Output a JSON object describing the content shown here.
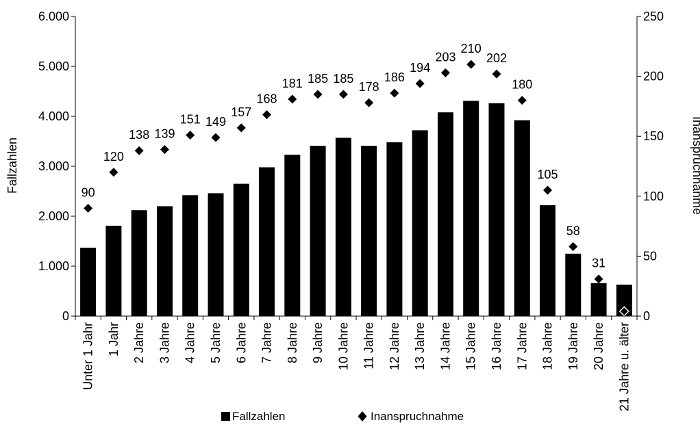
{
  "chart_data": {
    "type": "bar",
    "categories": [
      "Unter 1 Jahr",
      "1 Jahr",
      "2 Jahre",
      "3 Jahre",
      "4 Jahre",
      "5 Jahre",
      "6 Jahre",
      "7 Jahre",
      "8 Jahre",
      "9 Jahre",
      "10 Jahre",
      "11 Jahre",
      "12 Jahre",
      "13 Jahre",
      "14 Jahre",
      "15 Jahre",
      "16 Jahre",
      "17 Jahre",
      "18 Jahre",
      "19 Jahre",
      "20 Jahre",
      "21 Jahre u. älter"
    ],
    "series": [
      {
        "name": "Fallzahlen",
        "kind": "bar",
        "axis": "left",
        "color": "#000000",
        "values": [
          1370,
          1810,
          2120,
          2200,
          2420,
          2460,
          2650,
          2980,
          3230,
          3410,
          3570,
          3410,
          3480,
          3720,
          4080,
          4310,
          4260,
          3920,
          2220,
          1250,
          660,
          630
        ]
      },
      {
        "name": "Inanspruchnahme",
        "kind": "scatter",
        "marker": "diamond",
        "axis": "right",
        "color": "#000000",
        "values": [
          90,
          120,
          138,
          139,
          151,
          149,
          157,
          168,
          181,
          185,
          185,
          178,
          186,
          194,
          203,
          210,
          202,
          180,
          105,
          58,
          31,
          4
        ],
        "labels": [
          "90",
          "120",
          "138",
          "139",
          "151",
          "149",
          "157",
          "168",
          "181",
          "185",
          "185",
          "178",
          "186",
          "194",
          "203",
          "210",
          "202",
          "180",
          "105",
          "58",
          "31",
          ""
        ]
      }
    ],
    "ylabel_left": "Fallzahlen",
    "ylabel_right": "Inanspruchnahme",
    "ylim_left": [
      0,
      6000
    ],
    "ylim_right": [
      0,
      250
    ],
    "yticks_left": [
      "0",
      "1.000",
      "2.000",
      "3.000",
      "4.000",
      "5.000",
      "6.000"
    ],
    "yticks_right": [
      "0",
      "50",
      "100",
      "150",
      "200",
      "250"
    ],
    "grid": false,
    "legend": "bottom"
  }
}
